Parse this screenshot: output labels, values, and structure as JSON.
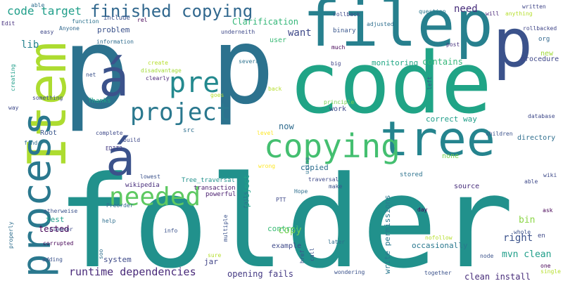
{
  "words": [
    {
      "text": "folder",
      "color": "#21918c"
    },
    {
      "text": "p",
      "color": "#2c728e"
    },
    {
      "text": "code",
      "color": "#20a486"
    },
    {
      "text": "p",
      "color": "#2c728e"
    },
    {
      "text": "filep",
      "color": "#27808e"
    },
    {
      "text": "p",
      "color": "#3b528b"
    },
    {
      "text": "Item",
      "color": "#addc30"
    },
    {
      "text": "á",
      "color": "#3b528b"
    },
    {
      "text": "á",
      "color": "#3b528b"
    },
    {
      "text": "tree",
      "color": "#25848e"
    },
    {
      "text": "process",
      "color": "#2a788e"
    },
    {
      "text": "copying",
      "color": "#44bf70"
    },
    {
      "text": "project",
      "color": "#2a788e"
    },
    {
      "text": "pre",
      "color": "#23898e"
    },
    {
      "text": "finished copying",
      "color": "#31688e"
    },
    {
      "text": "needed",
      "color": "#5ec962"
    },
    {
      "text": "code target",
      "color": "#1f9e89"
    },
    {
      "text": "runtime dependencies",
      "color": "#482979"
    },
    {
      "text": "copy",
      "color": "#75d054"
    },
    {
      "text": "Clarification",
      "color": "#35b779"
    },
    {
      "text": "bin",
      "color": "#8bd646"
    },
    {
      "text": "right",
      "color": "#3b528b"
    },
    {
      "text": "tested",
      "color": "#440154"
    },
    {
      "text": "want",
      "color": "#3e4989"
    },
    {
      "text": "need",
      "color": "#472d7b"
    },
    {
      "text": "mvn clean",
      "color": "#1f9e89"
    },
    {
      "text": "clean install",
      "color": "#472c7a"
    },
    {
      "text": "opening fails",
      "color": "#443983"
    },
    {
      "text": "contains",
      "color": "#35b779"
    },
    {
      "text": "copied",
      "color": "#2e6e8e"
    },
    {
      "text": "system",
      "color": "#3e4a89"
    },
    {
      "text": "write permissions",
      "color": "#2a788e"
    },
    {
      "text": "monitoring",
      "color": "#22a785"
    },
    {
      "text": "project",
      "color": "#1fa188"
    },
    {
      "text": "correct way",
      "color": "#1f9e89"
    },
    {
      "text": "now",
      "color": "#2f6b8e"
    },
    {
      "text": "jar",
      "color": "#414487"
    },
    {
      "text": "occasionally",
      "color": "#2a788e"
    },
    {
      "text": "control",
      "color": "#3aba76"
    },
    {
      "text": "lib",
      "color": "#26828e"
    },
    {
      "text": "Root",
      "color": "#39568c"
    },
    {
      "text": "example",
      "color": "#3e4989"
    },
    {
      "text": "test",
      "color": "#1f9e89"
    },
    {
      "text": "problem",
      "color": "#3b528b"
    },
    {
      "text": "work",
      "color": "#3e4989"
    },
    {
      "text": "user",
      "color": "#3aba76"
    },
    {
      "text": "binary",
      "color": "#39568c"
    },
    {
      "text": "Anyone",
      "color": "#31688e"
    },
    {
      "text": "Tree_traversal",
      "color": "#21918c"
    },
    {
      "text": "source",
      "color": "#472d7b"
    },
    {
      "text": "wikipedia",
      "color": "#472d7b"
    },
    {
      "text": "stored",
      "color": "#2c728e"
    },
    {
      "text": "directory",
      "color": "#2e6e8e"
    },
    {
      "text": "none",
      "color": "#7ad151"
    },
    {
      "text": "procedure",
      "color": "#3f4889"
    },
    {
      "text": "new",
      "color": "#a0da39"
    },
    {
      "text": "org",
      "color": "#31688e"
    },
    {
      "text": "src",
      "color": "#2e6f8e"
    },
    {
      "text": "en",
      "color": "#3e4989"
    },
    {
      "text": "powerful",
      "color": "#481c6e"
    },
    {
      "text": "transaction",
      "color": "#481a6c"
    },
    {
      "text": "Thanks",
      "color": "#20a486"
    },
    {
      "text": "include",
      "color": "#3b528b"
    },
    {
      "text": "function",
      "color": "#2c728e"
    },
    {
      "text": "EDIT2",
      "color": "#443a83"
    },
    {
      "text": "rollback",
      "color": "#3e4989"
    },
    {
      "text": "adjusted",
      "color": "#2e6e8e"
    },
    {
      "text": "question",
      "color": "#2a778e"
    },
    {
      "text": "written",
      "color": "#404688"
    },
    {
      "text": "anything",
      "color": "#b5de2b"
    },
    {
      "text": "rollbacked",
      "color": "#404688"
    },
    {
      "text": "will",
      "color": "#482576"
    },
    {
      "text": "much",
      "color": "#440154"
    },
    {
      "text": "post",
      "color": "#46327e"
    },
    {
      "text": "big",
      "color": "#404688"
    },
    {
      "text": "several",
      "color": "#2c728e"
    },
    {
      "text": "underneith",
      "color": "#3e4989"
    },
    {
      "text": "information",
      "color": "#2f6c8e"
    },
    {
      "text": "able",
      "color": "#2e6e8e"
    },
    {
      "text": "Edit",
      "color": "#46307e"
    },
    {
      "text": "easy",
      "color": "#3f4889"
    },
    {
      "text": "rel",
      "color": "#440154"
    },
    {
      "text": "net",
      "color": "#3b528b"
    },
    {
      "text": "create",
      "color": "#b5de2b"
    },
    {
      "text": "disadvantage",
      "color": "#a2da37"
    },
    {
      "text": "clearly",
      "color": "#482475"
    },
    {
      "text": "goes",
      "color": "#b5de2b"
    },
    {
      "text": "back",
      "color": "#b5de2b"
    },
    {
      "text": "left",
      "color": "#39568c"
    },
    {
      "text": "principle",
      "color": "#7ad151"
    },
    {
      "text": "something",
      "color": "#3e4989"
    },
    {
      "text": "creating",
      "color": "#1f9e89"
    },
    {
      "text": "way",
      "color": "#3e4989"
    },
    {
      "text": "complete",
      "color": "#3e4989"
    },
    {
      "text": "build",
      "color": "#3e4989"
    },
    {
      "text": "find",
      "color": "#2e6e8e"
    },
    {
      "text": "level",
      "color": "#fde725"
    },
    {
      "text": "children",
      "color": "#3b528b"
    },
    {
      "text": "database",
      "color": "#3e4989"
    },
    {
      "text": "wrong",
      "color": "#fde725"
    },
    {
      "text": "traversal",
      "color": "#3e4989"
    },
    {
      "text": "using",
      "color": "#2c728e"
    },
    {
      "text": "lowest",
      "color": "#3b528b"
    },
    {
      "text": "Hope",
      "color": "#2e6e8e"
    },
    {
      "text": "make",
      "color": "#3b528b"
    },
    {
      "text": "PTT",
      "color": "#3e4989"
    },
    {
      "text": "wiki",
      "color": "#3e4989"
    },
    {
      "text": "able",
      "color": "#3e4989"
    },
    {
      "text": "Preorder",
      "color": "#2f6c8e"
    },
    {
      "text": "otherweise",
      "color": "#3b528b"
    },
    {
      "text": "help",
      "color": "#2e6e8e"
    },
    {
      "text": "fails",
      "color": "#2e6e8e"
    },
    {
      "text": "day",
      "color": "#440154"
    },
    {
      "text": "ask",
      "color": "#440154"
    },
    {
      "text": "clearer",
      "color": "#3e4989"
    },
    {
      "text": "info",
      "color": "#3b528b"
    },
    {
      "text": "properly",
      "color": "#2e6e8e"
    },
    {
      "text": "corrupted",
      "color": "#440154"
    },
    {
      "text": "multiple",
      "color": "#3b528b"
    },
    {
      "text": "nofollow",
      "color": "#b5de2b"
    },
    {
      "text": "whole",
      "color": "#3b528b"
    },
    {
      "text": "later",
      "color": "#2e6e8e"
    },
    {
      "text": "node",
      "color": "#3b528b"
    },
    {
      "text": "one",
      "color": "#440154"
    },
    {
      "text": "adding",
      "color": "#3b528b"
    },
    {
      "text": "soo",
      "color": "#2e6e8e"
    },
    {
      "text": "sure",
      "color": "#b5de2b"
    },
    {
      "text": "href",
      "color": "#3b528b"
    },
    {
      "text": "call",
      "color": "#3b528b"
    },
    {
      "text": "single",
      "color": "#b5de2b"
    },
    {
      "text": "together",
      "color": "#3b528b"
    },
    {
      "text": "wondering",
      "color": "#3b528b"
    }
  ]
}
